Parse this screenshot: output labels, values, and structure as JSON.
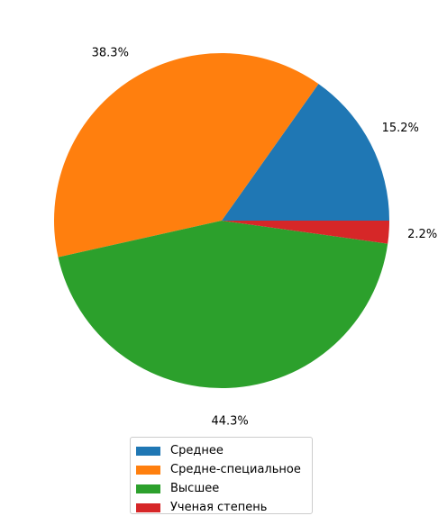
{
  "chart_data": {
    "type": "pie",
    "categories": [
      "Среднее",
      "Средне-специальное",
      "Высшее",
      "Ученая степень"
    ],
    "values": [
      15.2,
      38.3,
      44.3,
      2.2
    ],
    "value_labels": [
      "15.2%",
      "38.3%",
      "44.3%",
      "2.2%"
    ],
    "colors": [
      "#1f77b4",
      "#ff7f0e",
      "#2ca02c",
      "#d62728"
    ],
    "start_angle_deg": 0,
    "direction": "counterclockwise",
    "legend": {
      "placement": "bottom",
      "entries": [
        "Среднее",
        "Средне-специальное",
        "Высшее",
        "Ученая степень"
      ]
    }
  }
}
